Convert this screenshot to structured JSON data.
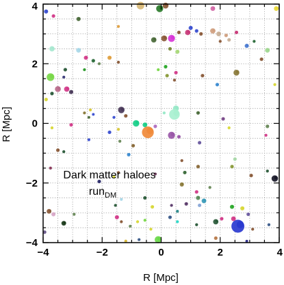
{
  "chart_data": {
    "type": "scatter",
    "title": "",
    "xlabel": "R [Mpc]",
    "ylabel": "R [Mpc]",
    "xlim": [
      -4,
      4
    ],
    "ylim": [
      -4,
      4
    ],
    "xticks": [
      -4,
      -2,
      0,
      2,
      4
    ],
    "yticks": [
      -4,
      -2,
      0,
      2,
      4
    ],
    "xtick_labels": [
      "−4",
      "−2",
      "0",
      "2",
      "4"
    ],
    "ytick_labels": [
      "−4",
      "−2",
      "0",
      "2",
      "4"
    ],
    "grid": true,
    "grid_step": 0.5,
    "annotation": {
      "line1": "Dark matter haloes",
      "line2_main": "run",
      "line2_sub": "DM"
    },
    "halos": [
      {
        "x": -3.9,
        "y": 3.75,
        "s": 0.07,
        "color": "#3a4fd0"
      },
      {
        "x": -3.65,
        "y": 3.6,
        "s": 0.06,
        "color": "#d23b8a"
      },
      {
        "x": -2.8,
        "y": 3.5,
        "s": 0.07,
        "color": "#4a6a3a"
      },
      {
        "x": -1.45,
        "y": 3.25,
        "s": 0.05,
        "color": "#e0a040"
      },
      {
        "x": -0.7,
        "y": 3.95,
        "s": 0.13,
        "color": "#d7b878"
      },
      {
        "x": -0.05,
        "y": 3.85,
        "s": 0.12,
        "color": "#2a7a2a"
      },
      {
        "x": 0.15,
        "y": 3.95,
        "s": 0.1,
        "color": "#8a5a3a"
      },
      {
        "x": 1.75,
        "y": 3.85,
        "s": 0.08,
        "color": "#d46aa8"
      },
      {
        "x": 3.9,
        "y": 3.85,
        "s": 0.08,
        "color": "#e8d838"
      },
      {
        "x": 0.9,
        "y": 3.05,
        "s": 0.09,
        "color": "#c83878"
      },
      {
        "x": 1.0,
        "y": 3.2,
        "s": 0.07,
        "color": "#3a4fd0"
      },
      {
        "x": 0.6,
        "y": 3.05,
        "s": 0.06,
        "color": "#8a5a3a"
      },
      {
        "x": 0.35,
        "y": 2.85,
        "s": 0.12,
        "color": "#d838d8"
      },
      {
        "x": 0.1,
        "y": 2.85,
        "s": 0.1,
        "color": "#8a5a3a"
      },
      {
        "x": -0.25,
        "y": 2.8,
        "s": 0.09,
        "color": "#4a6a3a"
      },
      {
        "x": 0.55,
        "y": 2.4,
        "s": 0.07,
        "color": "#a8d878"
      },
      {
        "x": 0.3,
        "y": 2.5,
        "s": 0.06,
        "color": "#7a8a3a"
      },
      {
        "x": 1.2,
        "y": 3.1,
        "s": 0.06,
        "color": "#3a4fd0"
      },
      {
        "x": 1.35,
        "y": 3.0,
        "s": 0.06,
        "color": "#8a5a3a"
      },
      {
        "x": 1.75,
        "y": 3.1,
        "s": 0.09,
        "color": "#d0a080"
      },
      {
        "x": 1.95,
        "y": 3.0,
        "s": 0.08,
        "color": "#c8b098"
      },
      {
        "x": 2.2,
        "y": 2.95,
        "s": 0.06,
        "color": "#d0a080"
      },
      {
        "x": 2.55,
        "y": 3.05,
        "s": 0.06,
        "color": "#c83878"
      },
      {
        "x": 2.3,
        "y": 2.8,
        "s": 0.06,
        "color": "#c8b098"
      },
      {
        "x": 2.0,
        "y": 2.75,
        "s": 0.05,
        "color": "#8a5a3a"
      },
      {
        "x": 2.9,
        "y": 2.6,
        "s": 0.07,
        "color": "#4a7ad0"
      },
      {
        "x": 3.15,
        "y": 2.75,
        "s": 0.05,
        "color": "#2a6a3a"
      },
      {
        "x": 3.6,
        "y": 2.45,
        "s": 0.08,
        "color": "#a0d890"
      },
      {
        "x": 3.4,
        "y": 2.15,
        "s": 0.06,
        "color": "#8a5a3a"
      },
      {
        "x": -3.7,
        "y": 2.5,
        "s": 0.09,
        "color": "#a8e8d0"
      },
      {
        "x": -2.8,
        "y": 2.45,
        "s": 0.08,
        "color": "#a8d8e8"
      },
      {
        "x": -2.55,
        "y": 2.2,
        "s": 0.07,
        "color": "#d23b8a"
      },
      {
        "x": -2.3,
        "y": 2.1,
        "s": 0.06,
        "color": "#2a6a3a"
      },
      {
        "x": -2.1,
        "y": 2.0,
        "s": 0.05,
        "color": "#6a8a5a"
      },
      {
        "x": -1.75,
        "y": 2.2,
        "s": 0.07,
        "color": "#e0a040"
      },
      {
        "x": -1.45,
        "y": 2.05,
        "s": 0.05,
        "color": "#8a5a3a"
      },
      {
        "x": -3.25,
        "y": 1.8,
        "s": 0.06,
        "color": "#2a5a3a"
      },
      {
        "x": -2.6,
        "y": 1.8,
        "s": 0.05,
        "color": "#2a9a2a"
      },
      {
        "x": -3.3,
        "y": 1.55,
        "s": 0.05,
        "color": "#3a3a7a"
      },
      {
        "x": -3.75,
        "y": 1.55,
        "s": 0.13,
        "color": "#7ad84a"
      },
      {
        "x": -3.5,
        "y": 1.15,
        "s": 0.1,
        "color": "#b86a8a"
      },
      {
        "x": -3.2,
        "y": 1.15,
        "s": 0.09,
        "color": "#d23b8a"
      },
      {
        "x": -3.05,
        "y": 1.05,
        "s": 0.07,
        "color": "#4a3a5a"
      },
      {
        "x": -3.7,
        "y": 1.0,
        "s": 0.06,
        "color": "#2a5a3a"
      },
      {
        "x": -3.9,
        "y": 0.8,
        "s": 0.06,
        "color": "#d8d838"
      },
      {
        "x": 0.15,
        "y": 1.9,
        "s": 0.06,
        "color": "#2aa82a"
      },
      {
        "x": -0.1,
        "y": 1.8,
        "s": 0.05,
        "color": "#7ad84a"
      },
      {
        "x": 0.2,
        "y": 1.6,
        "s": 0.06,
        "color": "#8a9a3a"
      },
      {
        "x": 0.5,
        "y": 1.7,
        "s": 0.06,
        "color": "#d23b8a"
      },
      {
        "x": 0.45,
        "y": 1.45,
        "s": 0.05,
        "color": "#8a5a3a"
      },
      {
        "x": 1.4,
        "y": 1.6,
        "s": 0.06,
        "color": "#8a5a3a"
      },
      {
        "x": 1.9,
        "y": 1.3,
        "s": 0.06,
        "color": "#3a8ad0"
      },
      {
        "x": 2.55,
        "y": 1.7,
        "s": 0.1,
        "color": "#8a7a3a"
      },
      {
        "x": 3.85,
        "y": 1.3,
        "s": 0.05,
        "color": "#d8d838"
      },
      {
        "x": 0.5,
        "y": 0.5,
        "s": 0.1,
        "color": "#98e8c8"
      },
      {
        "x": 0.45,
        "y": 0.3,
        "s": 0.18,
        "color": "#a8f0d0"
      },
      {
        "x": 0.1,
        "y": 0.35,
        "s": 0.05,
        "color": "#98e8c8"
      },
      {
        "x": -1.35,
        "y": 0.45,
        "s": 0.11,
        "color": "#4a3a5a"
      },
      {
        "x": -1.2,
        "y": 0.25,
        "s": 0.06,
        "color": "#8a5a3a"
      },
      {
        "x": -1.6,
        "y": 0.2,
        "s": 0.05,
        "color": "#3a4fd0"
      },
      {
        "x": -2.4,
        "y": 0.45,
        "s": 0.05,
        "color": "#d8c838"
      },
      {
        "x": -2.3,
        "y": 0.3,
        "s": 0.04,
        "color": "#3a4fd0"
      },
      {
        "x": -2.45,
        "y": 0.2,
        "s": 0.04,
        "color": "#4a6a3a"
      },
      {
        "x": -2.6,
        "y": 0.35,
        "s": 0.05,
        "color": "#8a7a3a"
      },
      {
        "x": -0.85,
        "y": 0.0,
        "s": 0.11,
        "color": "#1acf8a"
      },
      {
        "x": -0.55,
        "y": -0.05,
        "s": 0.08,
        "color": "#1acf8a"
      },
      {
        "x": -0.45,
        "y": -0.3,
        "s": 0.2,
        "color": "#f08a3a"
      },
      {
        "x": -0.2,
        "y": -0.1,
        "s": 0.06,
        "color": "#b070c0"
      },
      {
        "x": 0.35,
        "y": -0.4,
        "s": 0.12,
        "color": "#9a58a8"
      },
      {
        "x": 0.6,
        "y": -0.45,
        "s": 0.06,
        "color": "#9a58a8"
      },
      {
        "x": 1.25,
        "y": 0.35,
        "s": 0.06,
        "color": "#4a6a3a"
      },
      {
        "x": 2.1,
        "y": 0.15,
        "s": 0.06,
        "color": "#7a4a8a"
      },
      {
        "x": 2.3,
        "y": -0.15,
        "s": 0.05,
        "color": "#d8d838"
      },
      {
        "x": 3.6,
        "y": -0.1,
        "s": 0.06,
        "color": "#6a8a5a"
      },
      {
        "x": 3.55,
        "y": -0.4,
        "s": 0.05,
        "color": "#d23b8a"
      },
      {
        "x": -3.05,
        "y": -0.05,
        "s": 0.06,
        "color": "#d23b8a"
      },
      {
        "x": -3.7,
        "y": -0.15,
        "s": 0.05,
        "color": "#d8d838"
      },
      {
        "x": -1.75,
        "y": -0.3,
        "s": 0.06,
        "color": "#3a4fd0"
      },
      {
        "x": -1.45,
        "y": -0.2,
        "s": 0.05,
        "color": "#d8c838"
      },
      {
        "x": -1.4,
        "y": -0.6,
        "s": 0.05,
        "color": "#6a8a5a"
      },
      {
        "x": -0.95,
        "y": -0.75,
        "s": 0.06,
        "color": "#8a6a3a"
      },
      {
        "x": 1.3,
        "y": -0.65,
        "s": 0.06,
        "color": "#6a5aa0"
      },
      {
        "x": -2.45,
        "y": -0.55,
        "s": 0.05,
        "color": "#3a4fd0"
      },
      {
        "x": -3.5,
        "y": -0.9,
        "s": 0.06,
        "color": "#8a5a3a"
      },
      {
        "x": -3.3,
        "y": -0.95,
        "s": 0.05,
        "color": "#2a5a3a"
      },
      {
        "x": -1.1,
        "y": -1.05,
        "s": 0.06,
        "color": "#3a8ad0"
      },
      {
        "x": -3.75,
        "y": -1.5,
        "s": 0.05,
        "color": "#8a3a5a"
      },
      {
        "x": 0.7,
        "y": -1.25,
        "s": 0.05,
        "color": "#8a5a3a"
      },
      {
        "x": 1.25,
        "y": -1.45,
        "s": 0.06,
        "color": "#8a6a3a"
      },
      {
        "x": 0.8,
        "y": -1.65,
        "s": 0.06,
        "color": "#3a6a3a"
      },
      {
        "x": 2.5,
        "y": -1.2,
        "s": 0.06,
        "color": "#a8d8a8"
      },
      {
        "x": 2.4,
        "y": -1.45,
        "s": 0.06,
        "color": "#8a9a3a"
      },
      {
        "x": 3.05,
        "y": -1.75,
        "s": 0.06,
        "color": "#8a5a3a"
      },
      {
        "x": 3.6,
        "y": -1.6,
        "s": 0.05,
        "color": "#2a5a3a"
      },
      {
        "x": 3.85,
        "y": -1.85,
        "s": 0.11,
        "color": "#1a1a2a"
      },
      {
        "x": -2.1,
        "y": -1.95,
        "s": 0.06,
        "color": "#2a2a6a"
      },
      {
        "x": -1.6,
        "y": -1.8,
        "s": 0.05,
        "color": "#d8d838"
      },
      {
        "x": -1.45,
        "y": -1.65,
        "s": 0.05,
        "color": "#8a5a3a"
      },
      {
        "x": -0.2,
        "y": -1.7,
        "s": 0.05,
        "color": "#6a3a5a"
      },
      {
        "x": 0.7,
        "y": -2.05,
        "s": 0.07,
        "color": "#8a7a3a"
      },
      {
        "x": 1.65,
        "y": -2.15,
        "s": 0.05,
        "color": "#6a8a5a"
      },
      {
        "x": 1.2,
        "y": -2.3,
        "s": 0.06,
        "color": "#d23b8a"
      },
      {
        "x": 1.25,
        "y": -2.5,
        "s": 0.07,
        "color": "#5a8a5a"
      },
      {
        "x": 1.45,
        "y": -2.6,
        "s": 0.08,
        "color": "#3a9ab8"
      },
      {
        "x": 1.3,
        "y": -2.75,
        "s": 0.06,
        "color": "#8aa8d8"
      },
      {
        "x": 0.85,
        "y": -2.7,
        "s": 0.06,
        "color": "#5a3a6a"
      },
      {
        "x": 0.35,
        "y": -2.75,
        "s": 0.05,
        "color": "#5a3a6a"
      },
      {
        "x": 0.55,
        "y": -2.95,
        "s": 0.05,
        "color": "#2a8a8a"
      },
      {
        "x": -0.55,
        "y": -2.5,
        "s": 0.06,
        "color": "#2a5a3a"
      },
      {
        "x": -0.3,
        "y": -2.8,
        "s": 0.06,
        "color": "#d8d838"
      },
      {
        "x": -1.35,
        "y": -2.55,
        "s": 0.05,
        "color": "#a8d8e8"
      },
      {
        "x": -1.55,
        "y": -2.75,
        "s": 0.05,
        "color": "#2a5a3a"
      },
      {
        "x": 2.4,
        "y": -2.8,
        "s": 0.07,
        "color": "#2aa82a"
      },
      {
        "x": 2.75,
        "y": -2.85,
        "s": 0.07,
        "color": "#d8d838"
      },
      {
        "x": 2.95,
        "y": -3.05,
        "s": 0.06,
        "color": "#6a5aa0"
      },
      {
        "x": -3.8,
        "y": -2.95,
        "s": 0.08,
        "color": "#8a5a3a"
      },
      {
        "x": -3.65,
        "y": -3.05,
        "s": 0.07,
        "color": "#d8a8c8"
      },
      {
        "x": -2.95,
        "y": -3.05,
        "s": 0.05,
        "color": "#6a8a5a"
      },
      {
        "x": -3.3,
        "y": -3.35,
        "s": 0.08,
        "color": "#1a3a1a"
      },
      {
        "x": -3.95,
        "y": -3.65,
        "s": 0.06,
        "color": "#6a5a8a"
      },
      {
        "x": -1.5,
        "y": -3.15,
        "s": 0.07,
        "color": "#d23b8a"
      },
      {
        "x": -1.35,
        "y": -3.3,
        "s": 0.05,
        "color": "#8a5a3a"
      },
      {
        "x": -1.05,
        "y": -3.45,
        "s": 0.05,
        "color": "#6a8a5a"
      },
      {
        "x": -0.8,
        "y": -3.3,
        "s": 0.05,
        "color": "#d8d838"
      },
      {
        "x": -0.55,
        "y": -3.25,
        "s": 0.05,
        "color": "#7ad84a"
      },
      {
        "x": -0.35,
        "y": -3.55,
        "s": 0.05,
        "color": "#d8d838"
      },
      {
        "x": 0.3,
        "y": -3.15,
        "s": 0.06,
        "color": "#3a5a8a"
      },
      {
        "x": 0.55,
        "y": -3.3,
        "s": 0.05,
        "color": "#2ad8c8"
      },
      {
        "x": 1.2,
        "y": -3.4,
        "s": 0.05,
        "color": "#2a5a3a"
      },
      {
        "x": 1.85,
        "y": -3.3,
        "s": 0.09,
        "color": "#2a5a3a"
      },
      {
        "x": 2.05,
        "y": -3.2,
        "s": 0.06,
        "color": "#d23b8a"
      },
      {
        "x": 2.6,
        "y": -3.45,
        "s": 0.22,
        "color": "#2a3ad0"
      },
      {
        "x": 2.45,
        "y": -3.2,
        "s": 0.08,
        "color": "#d23b8a"
      },
      {
        "x": 3.1,
        "y": -3.55,
        "s": 0.05,
        "color": "#8a5a3a"
      },
      {
        "x": 3.65,
        "y": -3.4,
        "s": 0.05,
        "color": "#3a5a8a"
      },
      {
        "x": 1.85,
        "y": -3.85,
        "s": 0.06,
        "color": "#b87a4a"
      },
      {
        "x": -0.75,
        "y": -3.9,
        "s": 0.05,
        "color": "#3a5a8a"
      },
      {
        "x": -0.1,
        "y": -3.9,
        "s": 0.12,
        "color": "#6ad84a"
      },
      {
        "x": -1.2,
        "y": -3.95,
        "s": 0.05,
        "color": "#d8b838"
      },
      {
        "x": 2.9,
        "y": -3.95,
        "s": 0.04,
        "color": "#2a2a8a"
      }
    ]
  }
}
